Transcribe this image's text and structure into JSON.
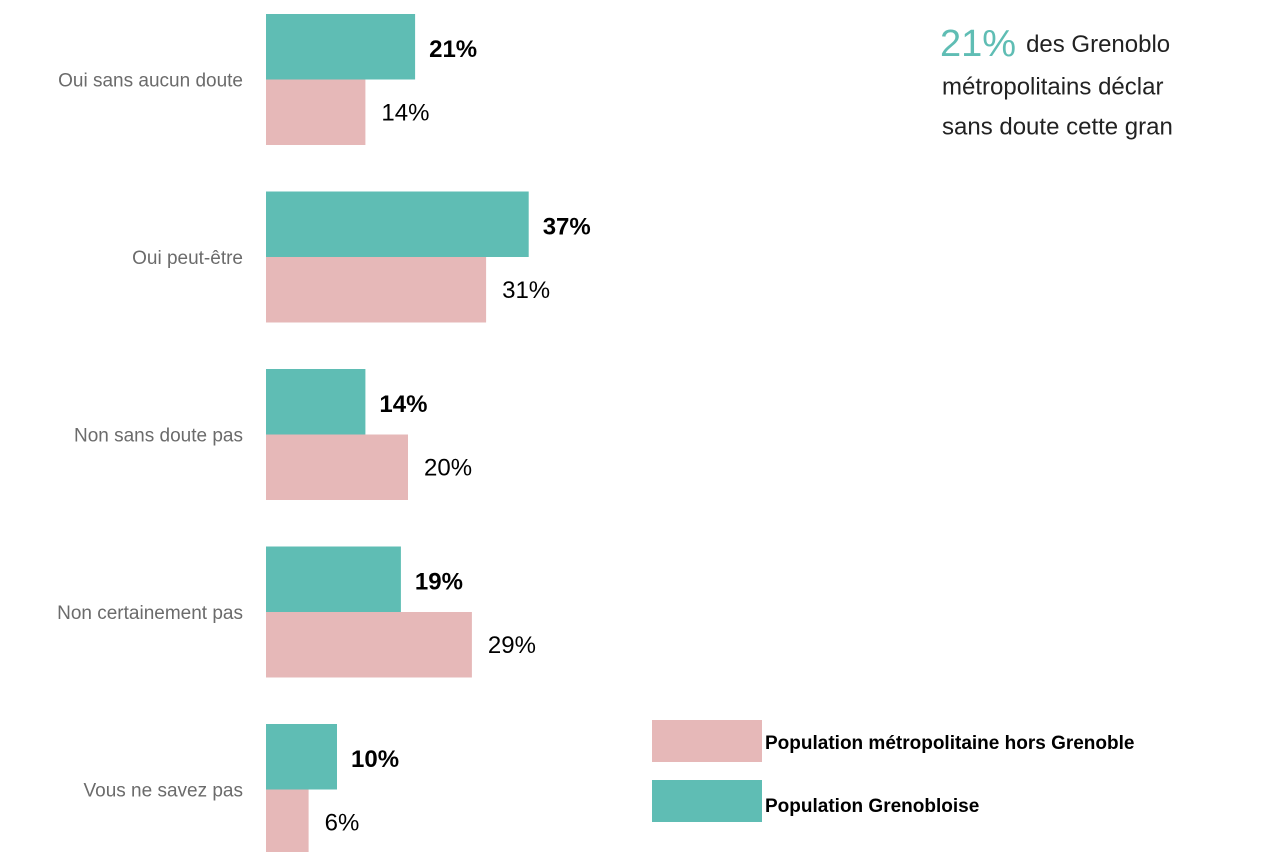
{
  "chart_data": {
    "type": "bar",
    "orientation": "horizontal",
    "categories": [
      "Oui sans aucun doute",
      "Oui peut-être",
      "Non sans doute pas",
      "Non certainement pas",
      "Vous ne savez pas"
    ],
    "series": [
      {
        "name": "Population Grenobloise",
        "color": "#5fbdb4",
        "values": [
          21,
          37,
          14,
          19,
          10
        ],
        "value_labels": [
          "21%",
          "37%",
          "14%",
          "19%",
          "10%"
        ]
      },
      {
        "name": "Population métropolitaine hors Grenoble",
        "color": "#e6b8b8",
        "values": [
          14,
          31,
          20,
          29,
          6
        ],
        "value_labels": [
          "14%",
          "31%",
          "20%",
          "29%",
          "6%"
        ]
      }
    ],
    "annotation": {
      "highlight": "21%",
      "lines": [
        "des Grenoblo",
        "métropolitains déclar",
        "sans doute cette gran"
      ]
    }
  }
}
